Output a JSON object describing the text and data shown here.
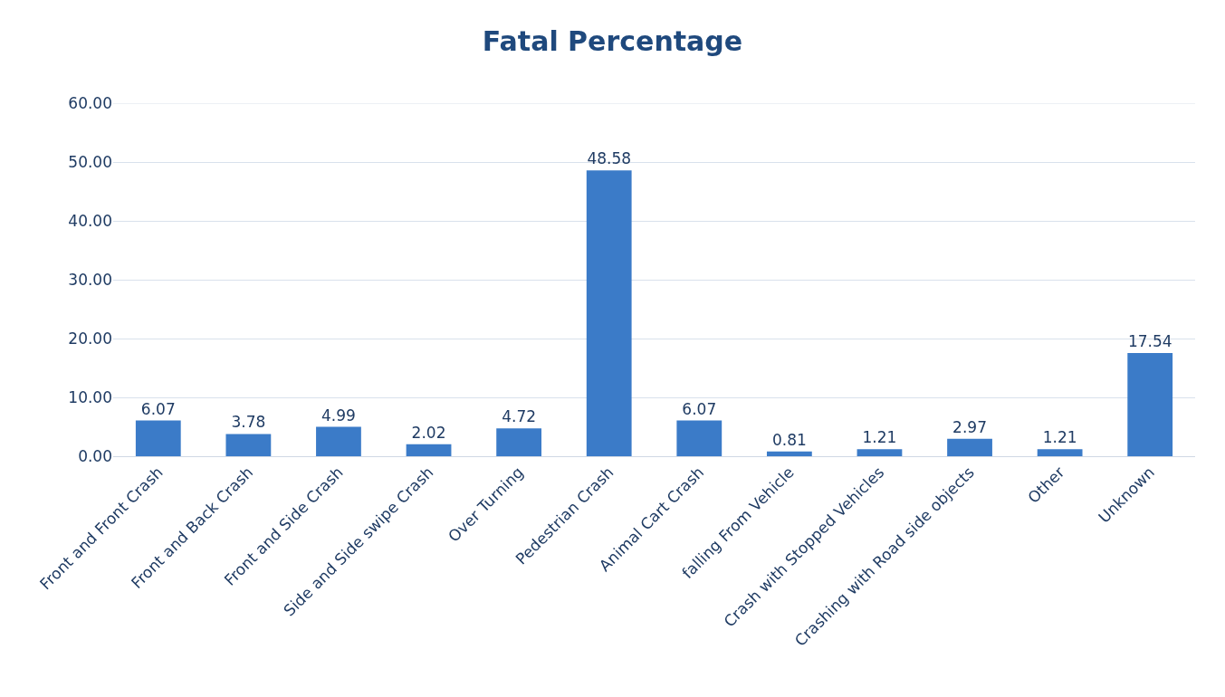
{
  "chart_data": {
    "type": "bar",
    "title": "Fatal Percentage",
    "categories": [
      "Front and Front Crash",
      "Front and Back Crash",
      "Front and Side Crash",
      "Side and Side swipe Crash",
      "Over Turning",
      "Pedestrian Crash",
      "Animal Cart Crash",
      "falling From Vehicle",
      "Crash with Stopped Vehicles",
      "Crashing with Road side objects",
      "Other",
      "Unknown"
    ],
    "values": [
      6.07,
      3.78,
      4.99,
      2.02,
      4.72,
      48.58,
      6.07,
      0.81,
      1.21,
      2.97,
      1.21,
      17.54
    ],
    "color": "#3b7bc8",
    "ylim": [
      0,
      60
    ],
    "yticks": [
      {
        "value": 0,
        "label": "0.00"
      },
      {
        "value": 10,
        "label": "10.00"
      },
      {
        "value": 20,
        "label": "20.00"
      },
      {
        "value": 30,
        "label": "30.00"
      },
      {
        "value": 40,
        "label": "40.00"
      },
      {
        "value": 50,
        "label": "50.00"
      },
      {
        "value": 60,
        "label": "60.00"
      }
    ],
    "grid": "y",
    "data_labels": true
  }
}
